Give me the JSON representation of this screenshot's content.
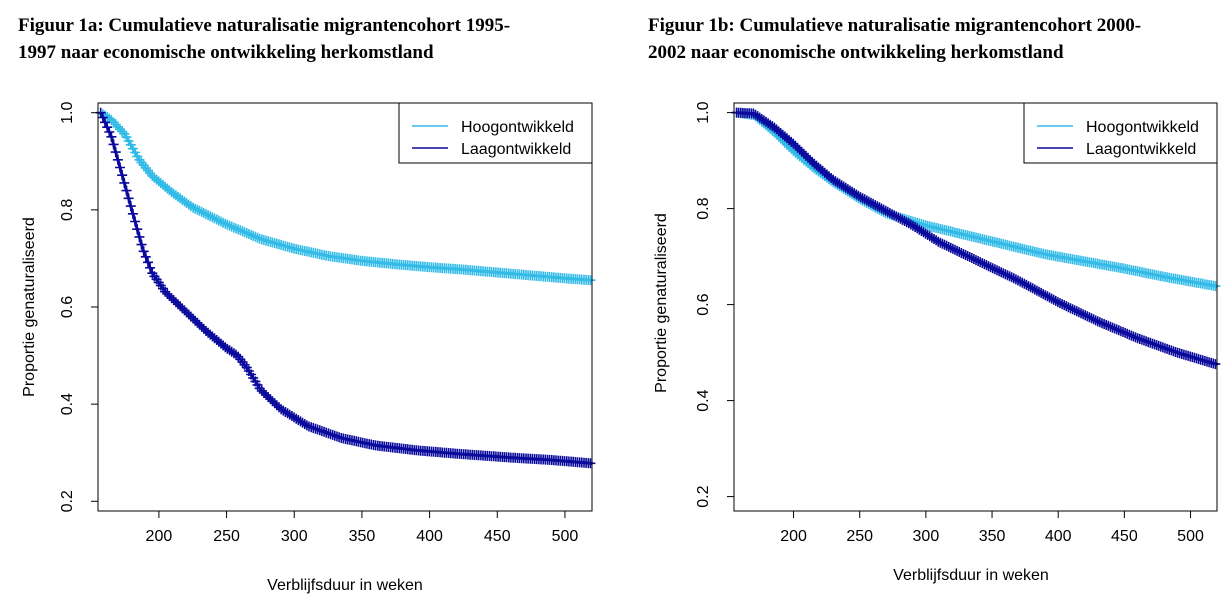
{
  "chart_data": [
    {
      "type": "line",
      "title": "Figuur 1a: Cumulatieve naturalisatie migrantencohort 1995-\n1997 naar economische ontwikkeling herkomstland",
      "xlabel": "Verblijfsduur in weken",
      "ylabel": "Proportie genaturaliseerd",
      "xlim": [
        155,
        520
      ],
      "ylim": [
        0.18,
        1.02
      ],
      "xticks": [
        200,
        250,
        300,
        350,
        400,
        450,
        500
      ],
      "yticks": [
        0.2,
        0.4,
        0.6,
        0.8,
        1.0
      ],
      "xtick_labels": [
        "200",
        "250",
        "300",
        "350",
        "400",
        "450",
        "500"
      ],
      "ytick_labels": [
        "0.2",
        "0.4",
        "0.6",
        "0.8",
        "1.0"
      ],
      "grid": false,
      "legend_position": "top-right",
      "series": [
        {
          "name": "Hoogontwikkeld",
          "color": "#33bbe8",
          "marker": "+",
          "x": [
            157,
            165,
            175,
            185,
            195,
            210,
            225,
            250,
            275,
            300,
            325,
            350,
            375,
            400,
            425,
            450,
            475,
            500,
            520
          ],
          "y": [
            1.0,
            0.985,
            0.955,
            0.905,
            0.87,
            0.835,
            0.805,
            0.77,
            0.74,
            0.72,
            0.705,
            0.695,
            0.688,
            0.682,
            0.677,
            0.671,
            0.665,
            0.659,
            0.655
          ]
        },
        {
          "name": "Laagontwikkeld",
          "color": "#0a0a9c",
          "marker": "+",
          "x": [
            157,
            165,
            172,
            180,
            188,
            195,
            205,
            220,
            235,
            250,
            258,
            265,
            275,
            290,
            310,
            335,
            360,
            390,
            420,
            460,
            490,
            520
          ],
          "y": [
            1.0,
            0.95,
            0.88,
            0.8,
            0.72,
            0.67,
            0.63,
            0.59,
            0.55,
            0.515,
            0.5,
            0.475,
            0.43,
            0.39,
            0.355,
            0.33,
            0.315,
            0.305,
            0.298,
            0.29,
            0.285,
            0.278
          ]
        }
      ]
    },
    {
      "type": "line",
      "title": "Figuur 1b: Cumulatieve naturalisatie migrantencohort 2000-\n2002 naar economische ontwikkeling herkomstland",
      "xlabel": "Verblijfsduur in weken",
      "ylabel": "Proportie genaturaliseerd",
      "xlim": [
        155,
        520
      ],
      "ylim": [
        0.17,
        1.02
      ],
      "xticks": [
        200,
        250,
        300,
        350,
        400,
        450,
        500
      ],
      "yticks": [
        0.2,
        0.4,
        0.6,
        0.8,
        1.0
      ],
      "xtick_labels": [
        "200",
        "250",
        "300",
        "350",
        "400",
        "450",
        "500"
      ],
      "ytick_labels": [
        "0.2",
        "0.4",
        "0.6",
        "0.8",
        "1.0"
      ],
      "grid": false,
      "legend_position": "top-right",
      "series": [
        {
          "name": "Hoogontwikkeld",
          "color": "#33bbe8",
          "marker": "+",
          "x": [
            157,
            170,
            185,
            200,
            215,
            230,
            250,
            270,
            300,
            330,
            360,
            390,
            420,
            450,
            480,
            500,
            520
          ],
          "y": [
            1.0,
            0.995,
            0.96,
            0.92,
            0.885,
            0.855,
            0.82,
            0.79,
            0.765,
            0.745,
            0.725,
            0.705,
            0.69,
            0.675,
            0.658,
            0.648,
            0.638
          ]
        },
        {
          "name": "Laagontwikkeld",
          "color": "#0a0a9c",
          "marker": "+",
          "x": [
            157,
            170,
            185,
            200,
            215,
            230,
            250,
            270,
            290,
            310,
            340,
            370,
            400,
            430,
            460,
            490,
            520
          ],
          "y": [
            1.0,
            0.998,
            0.97,
            0.935,
            0.895,
            0.86,
            0.825,
            0.795,
            0.765,
            0.73,
            0.69,
            0.65,
            0.605,
            0.565,
            0.53,
            0.5,
            0.475
          ]
        }
      ]
    }
  ]
}
